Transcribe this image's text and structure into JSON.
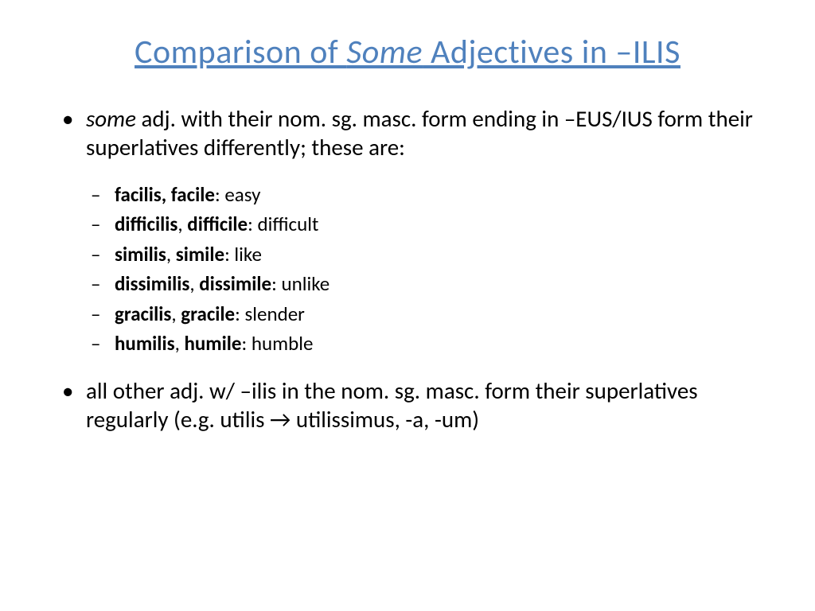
{
  "title": {
    "pre": "Comparison of ",
    "italic": "Some",
    "post": " Adjectives in –ILIS",
    "color": "#4f81bd",
    "fontsize": 42
  },
  "bullets": {
    "main1": {
      "pre_italic": "some",
      "rest": " adj. with their nom. sg. masc. form ending in –EUS/IUS form their superlatives differently; these are:"
    },
    "sub": [
      {
        "latin": "facilis, facile",
        "sep": ": ",
        "english": "easy"
      },
      {
        "latin1": "difficilis",
        "comma": ", ",
        "latin2": "difficile",
        "sep": ": ",
        "english": "difficult"
      },
      {
        "latin1": "similis",
        "comma": ", ",
        "latin2": "simile",
        "sep": ": ",
        "english": "like"
      },
      {
        "latin1": "dissimilis",
        "comma": ", ",
        "latin2": "dissimile",
        "sep": ": ",
        "english": "unlike"
      },
      {
        "latin1": "gracilis",
        "comma": ", ",
        "latin2": "gracile",
        "sep": ": ",
        "english": "slender"
      },
      {
        "latin1": "humilis",
        "comma": ", ",
        "latin2": "humile",
        "sep": ": ",
        "english": "humble"
      }
    ],
    "main2": "all other adj. w/ –ilis in the nom. sg. masc. form their superlatives regularly (e.g. utilis → utilissimus, -a, -um)"
  },
  "body_fontsize": 29,
  "sub_fontsize": 25,
  "text_color": "#000000",
  "background_color": "#ffffff"
}
